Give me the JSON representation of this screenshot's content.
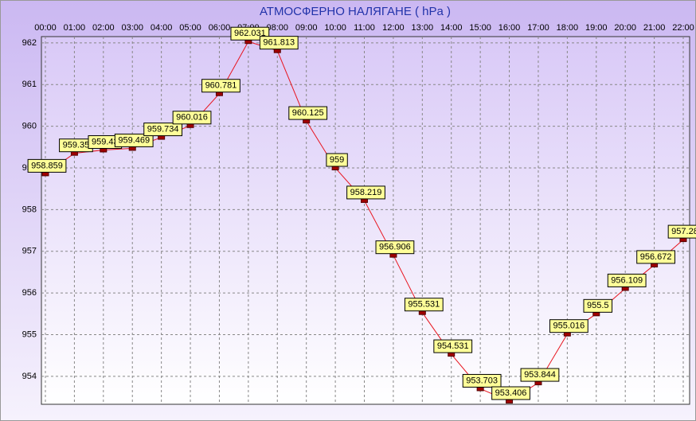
{
  "chart_data": {
    "type": "line",
    "title": "АТМОСФЕРНО НАЛЯГАНЕ  ( hPa )",
    "categories": [
      "00:00",
      "01:00",
      "02:00",
      "03:00",
      "04:00",
      "05:00",
      "06:00",
      "07:00",
      "08:00",
      "09:00",
      "10:00",
      "11:00",
      "12:00",
      "13:00",
      "14:00",
      "15:00",
      "16:00",
      "17:00",
      "18:00",
      "19:00",
      "20:00",
      "21:00",
      "22:00"
    ],
    "series": [
      {
        "name": "hPa",
        "color": "#e8141e",
        "values": [
          958.859,
          959.35,
          959.43,
          959.469,
          959.734,
          960.016,
          960.781,
          962.031,
          961.813,
          960.125,
          959,
          958.219,
          956.906,
          955.531,
          954.531,
          953.703,
          953.406,
          953.844,
          955.016,
          955.5,
          956.109,
          956.672,
          957.28
        ]
      }
    ],
    "ylim": [
      953.33,
      962.15
    ],
    "yticks": [
      954,
      955,
      956,
      957,
      958,
      959,
      960,
      961,
      962
    ],
    "grid": true
  }
}
